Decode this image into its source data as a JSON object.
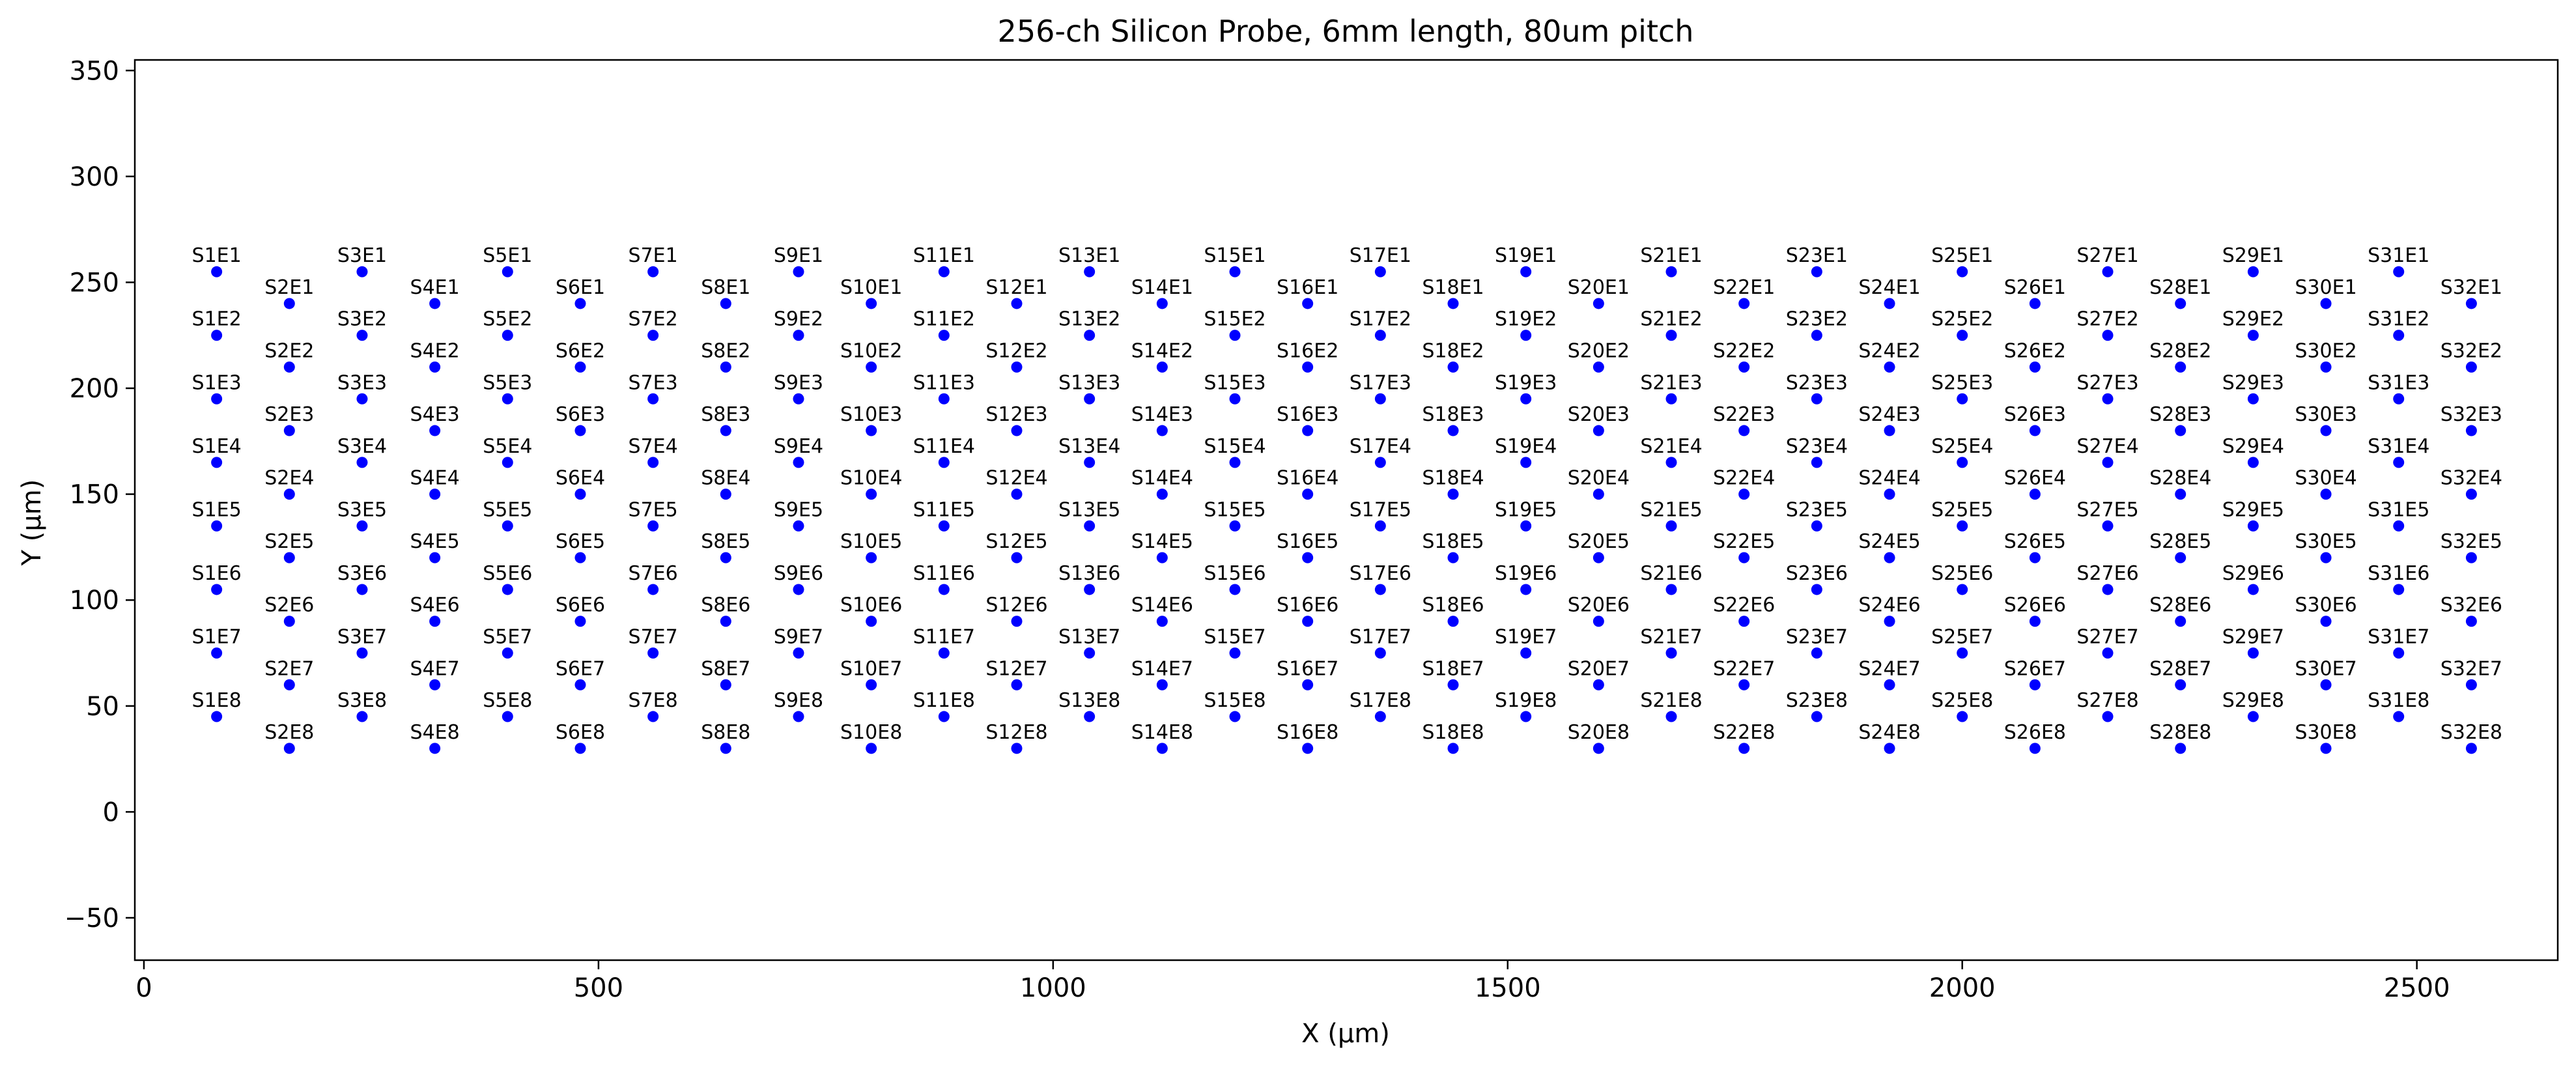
{
  "chart_data": {
    "type": "scatter",
    "title": "256-ch Silicon Probe, 6mm length, 80um pitch",
    "xlabel": "X (µm)",
    "ylabel": "Y (µm)",
    "xlim": [
      -10,
      2655
    ],
    "ylim": [
      -70,
      355
    ],
    "xticks": [
      0,
      500,
      1000,
      1500,
      2000,
      2500
    ],
    "xtick_labels": [
      "0",
      "500",
      "1000",
      "1500",
      "2000",
      "2500"
    ],
    "yticks": [
      -50,
      0,
      50,
      100,
      150,
      200,
      250,
      300,
      350
    ],
    "ytick_labels": [
      "−50",
      "0",
      "50",
      "100",
      "150",
      "200",
      "250",
      "300",
      "350"
    ],
    "grid": false,
    "marker_color": "#0000ff",
    "shanks": [
      {
        "label": "S1",
        "x": 80,
        "y": [
          255,
          225,
          195,
          165,
          135,
          105,
          75,
          45
        ]
      },
      {
        "label": "S2",
        "x": 160,
        "y": [
          240,
          210,
          180,
          150,
          120,
          90,
          60,
          30
        ]
      },
      {
        "label": "S3",
        "x": 240,
        "y": [
          255,
          225,
          195,
          165,
          135,
          105,
          75,
          45
        ]
      },
      {
        "label": "S4",
        "x": 320,
        "y": [
          240,
          210,
          180,
          150,
          120,
          90,
          60,
          30
        ]
      },
      {
        "label": "S5",
        "x": 400,
        "y": [
          255,
          225,
          195,
          165,
          135,
          105,
          75,
          45
        ]
      },
      {
        "label": "S6",
        "x": 480,
        "y": [
          240,
          210,
          180,
          150,
          120,
          90,
          60,
          30
        ]
      },
      {
        "label": "S7",
        "x": 560,
        "y": [
          255,
          225,
          195,
          165,
          135,
          105,
          75,
          45
        ]
      },
      {
        "label": "S8",
        "x": 640,
        "y": [
          240,
          210,
          180,
          150,
          120,
          90,
          60,
          30
        ]
      },
      {
        "label": "S9",
        "x": 720,
        "y": [
          255,
          225,
          195,
          165,
          135,
          105,
          75,
          45
        ]
      },
      {
        "label": "S10",
        "x": 800,
        "y": [
          240,
          210,
          180,
          150,
          120,
          90,
          60,
          30
        ]
      },
      {
        "label": "S11",
        "x": 880,
        "y": [
          255,
          225,
          195,
          165,
          135,
          105,
          75,
          45
        ]
      },
      {
        "label": "S12",
        "x": 960,
        "y": [
          240,
          210,
          180,
          150,
          120,
          90,
          60,
          30
        ]
      },
      {
        "label": "S13",
        "x": 1040,
        "y": [
          255,
          225,
          195,
          165,
          135,
          105,
          75,
          45
        ]
      },
      {
        "label": "S14",
        "x": 1120,
        "y": [
          240,
          210,
          180,
          150,
          120,
          90,
          60,
          30
        ]
      },
      {
        "label": "S15",
        "x": 1200,
        "y": [
          255,
          225,
          195,
          165,
          135,
          105,
          75,
          45
        ]
      },
      {
        "label": "S16",
        "x": 1280,
        "y": [
          240,
          210,
          180,
          150,
          120,
          90,
          60,
          30
        ]
      },
      {
        "label": "S17",
        "x": 1360,
        "y": [
          255,
          225,
          195,
          165,
          135,
          105,
          75,
          45
        ]
      },
      {
        "label": "S18",
        "x": 1440,
        "y": [
          240,
          210,
          180,
          150,
          120,
          90,
          60,
          30
        ]
      },
      {
        "label": "S19",
        "x": 1520,
        "y": [
          255,
          225,
          195,
          165,
          135,
          105,
          75,
          45
        ]
      },
      {
        "label": "S20",
        "x": 1600,
        "y": [
          240,
          210,
          180,
          150,
          120,
          90,
          60,
          30
        ]
      },
      {
        "label": "S21",
        "x": 1680,
        "y": [
          255,
          225,
          195,
          165,
          135,
          105,
          75,
          45
        ]
      },
      {
        "label": "S22",
        "x": 1760,
        "y": [
          240,
          210,
          180,
          150,
          120,
          90,
          60,
          30
        ]
      },
      {
        "label": "S23",
        "x": 1840,
        "y": [
          255,
          225,
          195,
          165,
          135,
          105,
          75,
          45
        ]
      },
      {
        "label": "S24",
        "x": 1920,
        "y": [
          240,
          210,
          180,
          150,
          120,
          90,
          60,
          30
        ]
      },
      {
        "label": "S25",
        "x": 2000,
        "y": [
          255,
          225,
          195,
          165,
          135,
          105,
          75,
          45
        ]
      },
      {
        "label": "S26",
        "x": 2080,
        "y": [
          240,
          210,
          180,
          150,
          120,
          90,
          60,
          30
        ]
      },
      {
        "label": "S27",
        "x": 2160,
        "y": [
          255,
          225,
          195,
          165,
          135,
          105,
          75,
          45
        ]
      },
      {
        "label": "S28",
        "x": 2240,
        "y": [
          240,
          210,
          180,
          150,
          120,
          90,
          60,
          30
        ]
      },
      {
        "label": "S29",
        "x": 2320,
        "y": [
          255,
          225,
          195,
          165,
          135,
          105,
          75,
          45
        ]
      },
      {
        "label": "S30",
        "x": 2400,
        "y": [
          240,
          210,
          180,
          150,
          120,
          90,
          60,
          30
        ]
      },
      {
        "label": "S31",
        "x": 2480,
        "y": [
          255,
          225,
          195,
          165,
          135,
          105,
          75,
          45
        ]
      },
      {
        "label": "S32",
        "x": 2560,
        "y": [
          240,
          210,
          180,
          150,
          120,
          90,
          60,
          30
        ]
      }
    ],
    "electrode_labels": [
      "E1",
      "E2",
      "E3",
      "E4",
      "E5",
      "E6",
      "E7",
      "E8"
    ]
  }
}
